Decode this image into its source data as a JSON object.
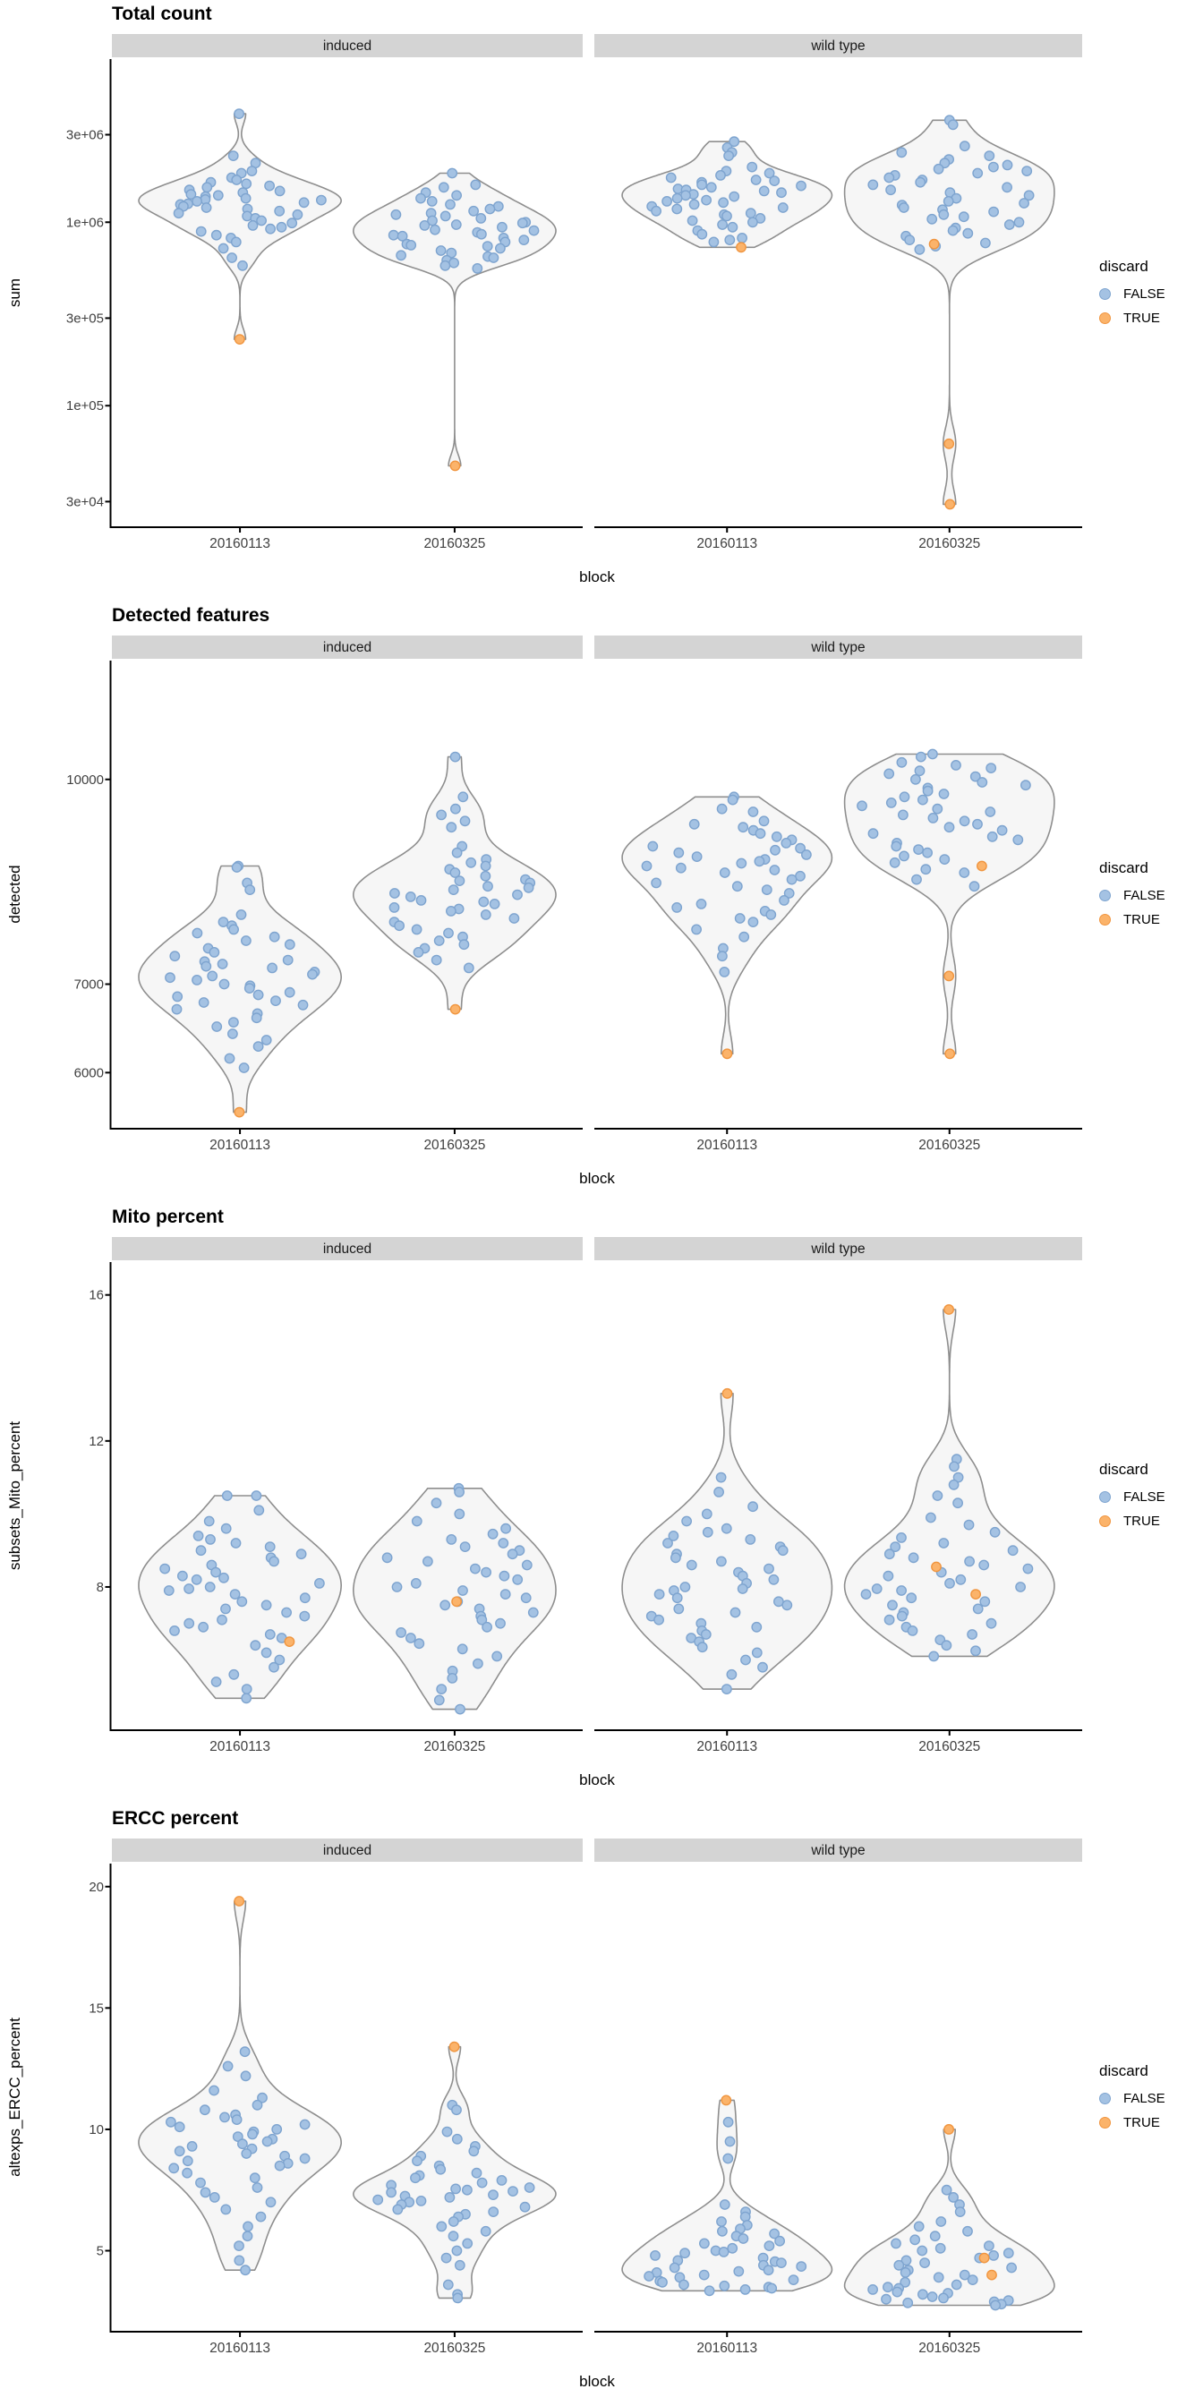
{
  "facets": [
    "induced",
    "wild type"
  ],
  "categories": [
    "20160113",
    "20160325"
  ],
  "legend": {
    "title": "discard",
    "items": [
      {
        "label": "FALSE",
        "color": "#A4C2E3",
        "stroke": "#7EA4CF"
      },
      {
        "label": "TRUE",
        "color": "#FBB36A",
        "stroke": "#F0953F"
      }
    ]
  },
  "style": {
    "violin_fill": "#F6F6F6",
    "violin_stroke": "#8E8E8E",
    "strip_fill": "#D4D4D4",
    "strip_text": "#1A1A1A",
    "axis_color": "#000000",
    "tick_text": "#404040",
    "point_radius": 5.2
  },
  "chart_data": [
    {
      "type": "violin",
      "title": "Total count",
      "xlabel": "block",
      "ylabel": "sum",
      "scale": "log10",
      "domain": [
        22000,
        7750000
      ],
      "legend_position": "right",
      "grid": false,
      "yticks": [
        {
          "v": 30000,
          "label": "3e+04"
        },
        {
          "v": 100000,
          "label": "1e+05"
        },
        {
          "v": 300000,
          "label": "3e+05"
        },
        {
          "v": 1000000,
          "label": "1e+06"
        },
        {
          "v": 3000000,
          "label": "3e+06"
        }
      ],
      "groups": [
        {
          "facet": "induced",
          "block": "20160113",
          "false_values": [
            3900000,
            2300000,
            2100000,
            1900000,
            1850000,
            1750000,
            1700000,
            1650000,
            1620000,
            1580000,
            1550000,
            1500000,
            1480000,
            1450000,
            1420000,
            1400000,
            1380000,
            1350000,
            1330000,
            1320000,
            1300000,
            1280000,
            1260000,
            1250000,
            1220000,
            1200000,
            1180000,
            1150000,
            1120000,
            1100000,
            1080000,
            1050000,
            1020000,
            990000,
            960000,
            940000,
            920000,
            890000,
            850000,
            820000,
            780000,
            720000,
            640000,
            580000
          ],
          "true_values": [
            230000
          ]
        },
        {
          "facet": "induced",
          "block": "20160325",
          "false_values": [
            1850000,
            1600000,
            1550000,
            1450000,
            1400000,
            1350000,
            1300000,
            1250000,
            1220000,
            1180000,
            1150000,
            1120000,
            1100000,
            1080000,
            1050000,
            1020000,
            1000000,
            990000,
            970000,
            960000,
            940000,
            910000,
            900000,
            880000,
            860000,
            850000,
            840000,
            820000,
            800000,
            780000,
            760000,
            750000,
            740000,
            720000,
            700000,
            680000,
            660000,
            650000,
            640000,
            620000,
            600000,
            580000,
            560000
          ],
          "true_values": [
            47000
          ]
        },
        {
          "facet": "wild type",
          "block": "20160113",
          "false_values": [
            2750000,
            2550000,
            2400000,
            2300000,
            2000000,
            1900000,
            1850000,
            1800000,
            1750000,
            1700000,
            1680000,
            1650000,
            1600000,
            1580000,
            1550000,
            1520000,
            1500000,
            1480000,
            1450000,
            1420000,
            1400000,
            1380000,
            1350000,
            1320000,
            1300000,
            1280000,
            1250000,
            1220000,
            1200000,
            1180000,
            1150000,
            1120000,
            1100000,
            1080000,
            1050000,
            1020000,
            1000000,
            970000,
            940000,
            900000,
            860000,
            820000,
            800000,
            780000
          ],
          "true_values": [
            730000
          ]
        },
        {
          "facet": "wild type",
          "block": "20160325",
          "false_values": [
            3600000,
            3400000,
            2600000,
            2400000,
            2300000,
            2200000,
            2100000,
            2050000,
            2000000,
            1950000,
            1900000,
            1850000,
            1800000,
            1750000,
            1700000,
            1650000,
            1600000,
            1550000,
            1500000,
            1450000,
            1400000,
            1350000,
            1300000,
            1270000,
            1240000,
            1200000,
            1170000,
            1140000,
            1100000,
            1070000,
            1040000,
            1000000,
            970000,
            930000,
            900000,
            870000,
            840000,
            800000,
            770000,
            740000,
            710000
          ],
          "true_values": [
            760000,
            62000,
            29000
          ]
        }
      ]
    },
    {
      "type": "violin",
      "title": "Detected features",
      "xlabel": "block",
      "ylabel": "detected",
      "scale": "log10",
      "domain": [
        5450,
        12300
      ],
      "legend_position": "right",
      "grid": false,
      "yticks": [
        {
          "v": 6000,
          "label": "6000"
        },
        {
          "v": 7000,
          "label": "7000"
        },
        {
          "v": 10000,
          "label": "10000"
        }
      ],
      "groups": [
        {
          "facet": "induced",
          "block": "20160113",
          "false_values": [
            8600,
            8580,
            8350,
            8250,
            7900,
            7800,
            7750,
            7700,
            7650,
            7600,
            7550,
            7500,
            7450,
            7400,
            7350,
            7300,
            7280,
            7250,
            7220,
            7200,
            7150,
            7120,
            7100,
            7080,
            7050,
            7000,
            6980,
            6950,
            6900,
            6870,
            6850,
            6800,
            6780,
            6750,
            6700,
            6650,
            6600,
            6550,
            6500,
            6420,
            6350,
            6280,
            6150,
            6050
          ],
          "true_values": [
            5600
          ]
        },
        {
          "facet": "induced",
          "block": "20160325",
          "false_values": [
            10400,
            9700,
            9500,
            9400,
            9300,
            9200,
            8900,
            8800,
            8700,
            8650,
            8600,
            8550,
            8500,
            8450,
            8400,
            8380,
            8350,
            8300,
            8280,
            8250,
            8200,
            8180,
            8150,
            8100,
            8080,
            8050,
            8000,
            7980,
            7950,
            7900,
            7850,
            7800,
            7750,
            7700,
            7650,
            7600,
            7550,
            7500,
            7450,
            7400,
            7300,
            7200
          ],
          "true_values": [
            6700
          ]
        },
        {
          "facet": "wild type",
          "block": "20160113",
          "false_values": [
            9700,
            9650,
            9500,
            9450,
            9300,
            9250,
            9200,
            9150,
            9100,
            9050,
            9000,
            8950,
            8900,
            8870,
            8840,
            8800,
            8770,
            8740,
            8700,
            8670,
            8640,
            8600,
            8570,
            8540,
            8500,
            8450,
            8400,
            8350,
            8300,
            8250,
            8200,
            8100,
            8050,
            8000,
            7950,
            7900,
            7850,
            7800,
            7700,
            7600,
            7450,
            7350,
            7150
          ],
          "true_values": [
            6200
          ]
        },
        {
          "facet": "wild type",
          "block": "20160325",
          "false_values": [
            10450,
            10400,
            10300,
            10250,
            10200,
            10150,
            10100,
            10050,
            10000,
            9950,
            9900,
            9850,
            9800,
            9750,
            9700,
            9650,
            9600,
            9550,
            9500,
            9450,
            9400,
            9350,
            9300,
            9250,
            9200,
            9150,
            9100,
            9050,
            9000,
            8950,
            8900,
            8850,
            8800,
            8750,
            8700,
            8650,
            8550,
            8500,
            8400,
            8300
          ],
          "true_values": [
            8600,
            7100,
            6200
          ]
        }
      ]
    },
    {
      "type": "violin",
      "title": "Mito percent",
      "xlabel": "block",
      "ylabel": "subsets_Mito_percent",
      "scale": "linear",
      "domain": [
        4.1,
        16.9
      ],
      "legend_position": "right",
      "grid": false,
      "yticks": [
        {
          "v": 8,
          "label": "8"
        },
        {
          "v": 12,
          "label": "12"
        },
        {
          "v": 16,
          "label": "16"
        }
      ],
      "groups": [
        {
          "facet": "induced",
          "block": "20160113",
          "false_values": [
            10.5,
            10.5,
            10.1,
            9.8,
            9.6,
            9.4,
            9.3,
            9.2,
            9.1,
            9.0,
            8.9,
            8.8,
            8.7,
            8.6,
            8.5,
            8.4,
            8.3,
            8.25,
            8.2,
            8.1,
            8.0,
            7.95,
            7.9,
            7.8,
            7.7,
            7.6,
            7.5,
            7.4,
            7.3,
            7.2,
            7.1,
            7.0,
            6.9,
            6.8,
            6.7,
            6.6,
            6.4,
            6.2,
            6.0,
            5.8,
            5.6,
            5.4,
            5.2,
            4.95
          ],
          "true_values": [
            6.5
          ]
        },
        {
          "facet": "induced",
          "block": "20160325",
          "false_values": [
            10.7,
            10.6,
            10.3,
            10.0,
            9.8,
            9.6,
            9.45,
            9.3,
            9.2,
            9.1,
            9.0,
            8.9,
            8.8,
            8.7,
            8.6,
            8.5,
            8.4,
            8.3,
            8.2,
            8.1,
            8.0,
            7.9,
            7.8,
            7.7,
            7.6,
            7.5,
            7.4,
            7.3,
            7.2,
            7.1,
            7.0,
            6.9,
            6.75,
            6.6,
            6.45,
            6.3,
            6.1,
            5.9,
            5.7,
            5.5,
            5.2,
            4.9,
            4.65
          ],
          "true_values": [
            7.6
          ]
        },
        {
          "facet": "wild type",
          "block": "20160113",
          "false_values": [
            11.0,
            10.6,
            10.2,
            10.0,
            9.8,
            9.6,
            9.5,
            9.4,
            9.3,
            9.2,
            9.1,
            9.0,
            8.9,
            8.8,
            8.7,
            8.6,
            8.5,
            8.4,
            8.3,
            8.2,
            8.1,
            8.0,
            7.95,
            7.9,
            7.8,
            7.7,
            7.6,
            7.5,
            7.4,
            7.3,
            7.2,
            7.1,
            7.0,
            6.9,
            6.8,
            6.7,
            6.6,
            6.5,
            6.35,
            6.2,
            6.0,
            5.8,
            5.6,
            5.2
          ],
          "true_values": [
            13.3
          ]
        },
        {
          "facet": "wild type",
          "block": "20160325",
          "false_values": [
            11.5,
            11.3,
            11.0,
            10.8,
            10.5,
            10.3,
            9.9,
            9.7,
            9.5,
            9.35,
            9.2,
            9.1,
            9.0,
            8.9,
            8.8,
            8.7,
            8.6,
            8.5,
            8.4,
            8.3,
            8.2,
            8.1,
            8.0,
            7.95,
            7.9,
            7.8,
            7.7,
            7.6,
            7.5,
            7.4,
            7.3,
            7.2,
            7.1,
            7.0,
            6.9,
            6.8,
            6.7,
            6.55,
            6.4,
            6.25,
            6.1
          ],
          "true_values": [
            15.6,
            8.55,
            7.8
          ]
        }
      ]
    },
    {
      "type": "violin",
      "title": "ERCC percent",
      "xlabel": "block",
      "ylabel": "altexps_ERCC_percent",
      "scale": "linear",
      "domain": [
        1.7,
        20.95
      ],
      "legend_position": "right",
      "grid": false,
      "yticks": [
        {
          "v": 5,
          "label": "5"
        },
        {
          "v": 10,
          "label": "10"
        },
        {
          "v": 15,
          "label": "15"
        },
        {
          "v": 20,
          "label": "20"
        }
      ],
      "groups": [
        {
          "facet": "induced",
          "block": "20160113",
          "false_values": [
            13.2,
            12.6,
            12.2,
            11.6,
            11.3,
            11.0,
            10.8,
            10.6,
            10.5,
            10.4,
            10.3,
            10.2,
            10.1,
            10.0,
            9.9,
            9.8,
            9.7,
            9.6,
            9.5,
            9.4,
            9.3,
            9.2,
            9.1,
            9.0,
            8.9,
            8.8,
            8.7,
            8.6,
            8.5,
            8.4,
            8.2,
            8.0,
            7.8,
            7.6,
            7.4,
            7.2,
            7.0,
            6.7,
            6.4,
            6.0,
            5.6,
            5.2,
            4.6,
            4.2
          ],
          "true_values": [
            19.4
          ]
        },
        {
          "facet": "induced",
          "block": "20160325",
          "false_values": [
            11.0,
            10.8,
            9.9,
            9.6,
            9.3,
            9.1,
            8.9,
            8.7,
            8.5,
            8.35,
            8.2,
            8.1,
            8.0,
            7.9,
            7.8,
            7.7,
            7.6,
            7.55,
            7.5,
            7.45,
            7.4,
            7.3,
            7.25,
            7.2,
            7.1,
            7.05,
            7.0,
            6.9,
            6.8,
            6.7,
            6.6,
            6.5,
            6.4,
            6.2,
            6.0,
            5.8,
            5.6,
            5.3,
            5.0,
            4.7,
            4.4,
            3.6,
            3.2,
            3.05
          ],
          "true_values": [
            13.4
          ]
        },
        {
          "facet": "wild type",
          "block": "20160113",
          "false_values": [
            10.3,
            9.5,
            8.8,
            6.9,
            6.6,
            6.4,
            6.2,
            6.05,
            5.9,
            5.8,
            5.7,
            5.6,
            5.5,
            5.4,
            5.3,
            5.2,
            5.1,
            5.0,
            4.95,
            4.9,
            4.8,
            4.7,
            4.6,
            4.55,
            4.5,
            4.4,
            4.35,
            4.3,
            4.2,
            4.15,
            4.1,
            4.0,
            3.95,
            3.9,
            3.8,
            3.75,
            3.7,
            3.6,
            3.55,
            3.5,
            3.45,
            3.4,
            3.35
          ],
          "true_values": [
            11.2
          ]
        },
        {
          "facet": "wild type",
          "block": "20160325",
          "false_values": [
            7.5,
            7.2,
            6.9,
            6.6,
            6.2,
            6.0,
            5.8,
            5.6,
            5.45,
            5.3,
            5.2,
            5.1,
            5.0,
            4.9,
            4.8,
            4.7,
            4.6,
            4.5,
            4.4,
            4.3,
            4.2,
            4.1,
            4.0,
            3.9,
            3.8,
            3.7,
            3.6,
            3.5,
            3.45,
            3.4,
            3.3,
            3.25,
            3.2,
            3.1,
            3.05,
            3.0,
            2.95,
            2.9,
            2.85,
            2.8,
            2.75
          ],
          "true_values": [
            10.0,
            4.7,
            4.0
          ]
        }
      ]
    }
  ]
}
